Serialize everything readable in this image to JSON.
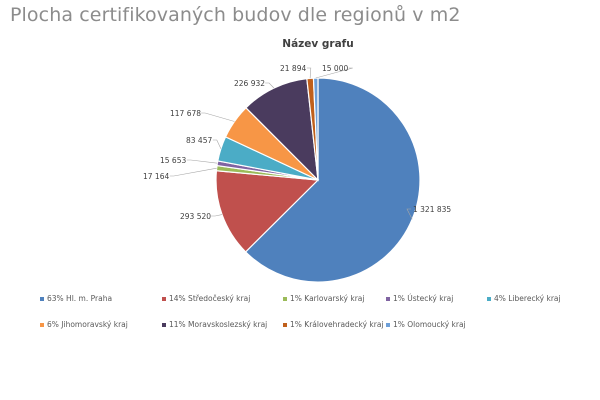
{
  "page": {
    "title": "Plocha certifikovaných budov dle regionů v m2"
  },
  "chart_data": {
    "type": "pie",
    "title": "Název grafu",
    "start_angle_deg": 0,
    "direction": "clockwise",
    "categories": [
      "Hl. m. Praha",
      "Středočeský kraj",
      "Karlovarský kraj",
      "Ústecký kraj",
      "Liberecký kraj",
      "Jihomoravský kraj",
      "Moravskoslezský kraj",
      "Královehradecký kraj",
      "Olomoucký kraj"
    ],
    "values": [
      1321835,
      293520,
      17164,
      15653,
      83457,
      117678,
      226932,
      21894,
      15000
    ],
    "value_labels": [
      "1 321 835",
      "293 520",
      "17 164",
      "15 653",
      "83 457",
      "117 678",
      "226 932",
      "21 894",
      "15 000"
    ],
    "percent_labels": [
      "63%",
      "14%",
      "1%",
      "1%",
      "4%",
      "6%",
      "11%",
      "1%",
      "1%"
    ],
    "colors": [
      "#4f81bd",
      "#c0504d",
      "#9bbb59",
      "#8064a2",
      "#4bacc6",
      "#f79646",
      "#4a3b5e",
      "#c0601c",
      "#6fa0d8"
    ],
    "legend_position": "bottom",
    "legend": [
      "63% Hl. m. Praha",
      "14% Středočeský kraj",
      "1% Karlovarský kraj",
      "1% Ústecký kraj",
      "4% Liberecký kraj",
      "6% Jihomoravský kraj",
      "11% Moravskoslezský kraj",
      "1% Královehradecký kraj",
      "1% Olomoucký kraj"
    ]
  }
}
